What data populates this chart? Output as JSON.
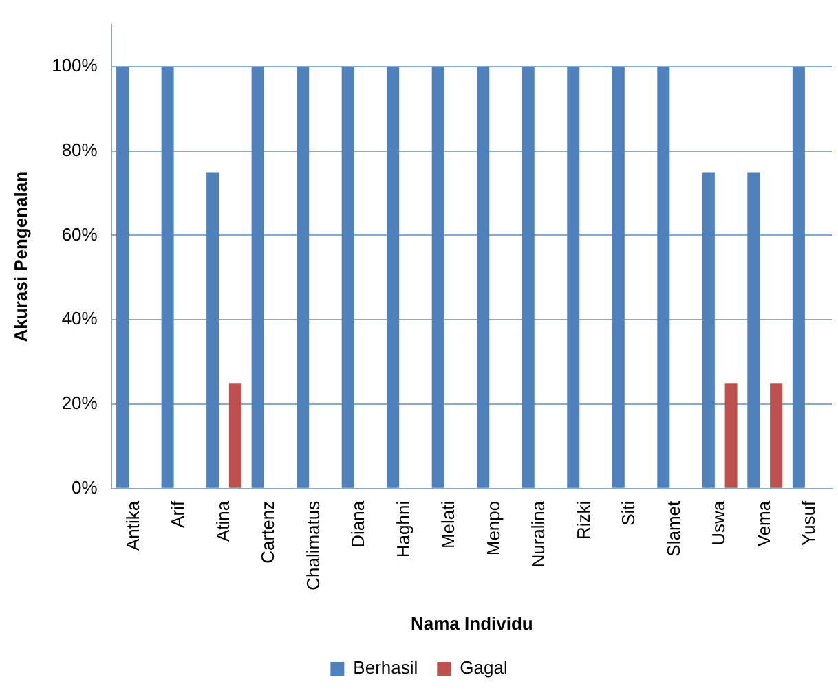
{
  "chart_data": {
    "type": "bar",
    "xlabel": "Nama Individu",
    "ylabel": "Akurasi Pengenalan",
    "categories": [
      "Antika",
      "Arif",
      "Atina",
      "Cartenz",
      "Chalimatus",
      "Diana",
      "Haghni",
      "Melati",
      "Menpo",
      "Nuralina",
      "Rizki",
      "Siti",
      "Slamet",
      "Uswa",
      "Vema",
      "Yusuf"
    ],
    "series": [
      {
        "name": "Berhasil",
        "color": "#4f81bd",
        "values": [
          100,
          100,
          75,
          100,
          100,
          100,
          100,
          100,
          100,
          100,
          100,
          100,
          100,
          75,
          75,
          100
        ]
      },
      {
        "name": "Gagal",
        "color": "#c0504d",
        "values": [
          0,
          0,
          25,
          0,
          0,
          0,
          0,
          0,
          0,
          0,
          0,
          0,
          0,
          25,
          25,
          0
        ]
      }
    ],
    "ylim": [
      0,
      110
    ],
    "yticks": [
      {
        "value": 0,
        "label": "0%"
      },
      {
        "value": 20,
        "label": "20%"
      },
      {
        "value": 40,
        "label": "40%"
      },
      {
        "value": 60,
        "label": "60%"
      },
      {
        "value": 80,
        "label": "80%"
      },
      {
        "value": 100,
        "label": "100%"
      }
    ],
    "grid": "y",
    "legend": "bottom"
  }
}
